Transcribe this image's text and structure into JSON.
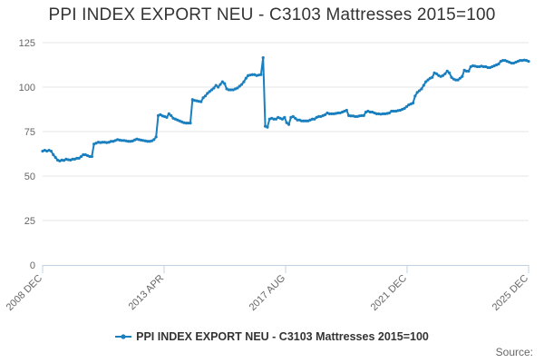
{
  "page": {
    "title": "PPI INDEX EXPORT NEU - C3103 Mattresses 2015=100",
    "source_label": "Source:"
  },
  "chart_data": {
    "type": "line",
    "title": "PPI INDEX EXPORT NEU - C3103 Mattresses 2015=100",
    "xlabel": "",
    "ylabel": "",
    "ylim": [
      0,
      125
    ],
    "y_ticks": [
      0,
      25,
      50,
      75,
      100,
      125
    ],
    "x_range": [
      "2008 DEC",
      "2025 DEC"
    ],
    "x_ticks": [
      "2008 DEC",
      "2013 APR",
      "2017 AUG",
      "2021 DEC",
      "2025 DEC"
    ],
    "grid": true,
    "legend": "bottom",
    "color": "#1a7fbf",
    "series": [
      {
        "name": "PPI INDEX EXPORT NEU - C3103 Mattresses 2015=100",
        "x_start": "2008-12",
        "frequency": "monthly",
        "values": [
          64,
          64.5,
          64,
          64.5,
          64,
          62,
          60.5,
          59,
          58.5,
          59,
          58.8,
          59.5,
          59.2,
          59,
          59.5,
          59.5,
          60,
          60,
          61,
          62,
          62,
          61.5,
          61,
          61,
          68,
          68.5,
          69,
          68.8,
          69,
          69,
          68.8,
          69,
          69.5,
          69.5,
          70,
          70.5,
          70.2,
          70,
          70,
          69.8,
          69.5,
          69.5,
          69.7,
          70.3,
          70.8,
          70.5,
          70.2,
          70,
          69.8,
          69.5,
          69.5,
          69.8,
          70.5,
          72,
          84,
          84.5,
          83.8,
          83.5,
          83,
          85,
          84,
          82.5,
          82,
          81.5,
          81,
          80.5,
          80,
          79.8,
          79.8,
          79.8,
          93,
          92.5,
          92.3,
          92,
          91.8,
          94,
          95,
          96.5,
          97.5,
          98.5,
          99.5,
          101,
          100,
          101.5,
          103,
          102,
          99,
          98.5,
          98.5,
          98.5,
          99,
          99.5,
          100.5,
          101.5,
          103,
          105,
          106.5,
          106.8,
          107,
          107,
          106.5,
          106.8,
          107,
          116.5,
          78,
          77.5,
          82,
          82.5,
          82,
          82,
          83,
          82.5,
          82,
          83,
          80,
          79,
          83,
          83.5,
          82.5,
          81.5,
          81.5,
          81,
          81,
          81,
          81,
          81.5,
          82,
          82,
          83,
          83.5,
          83.5,
          84,
          84.5,
          85.5,
          85,
          85,
          85,
          85.2,
          85.5,
          85.5,
          86,
          86.5,
          87,
          84,
          83.8,
          83.8,
          83.5,
          83.5,
          83.8,
          84,
          84,
          86,
          86.5,
          86,
          86,
          85.5,
          85,
          85,
          84.8,
          85,
          85,
          85.2,
          85.5,
          86.5,
          86.5,
          86.5,
          86.8,
          87,
          87.5,
          88,
          89,
          90,
          90.5,
          91,
          95,
          97,
          98,
          99,
          101,
          103,
          104,
          105,
          105.5,
          108,
          107.5,
          106.5,
          106,
          106.5,
          107.5,
          109,
          108,
          105.5,
          104.5,
          104,
          104,
          105,
          106,
          109.5,
          109,
          109,
          111.5,
          112,
          111.8,
          111.5,
          111.5,
          111.8,
          111.5,
          111.5,
          111,
          111,
          111.5,
          112,
          112.5,
          113,
          114.5,
          115,
          115,
          114.5,
          114,
          113.5,
          113.5,
          114,
          114.5,
          115,
          115,
          115.2,
          115,
          114.5
        ]
      }
    ]
  }
}
